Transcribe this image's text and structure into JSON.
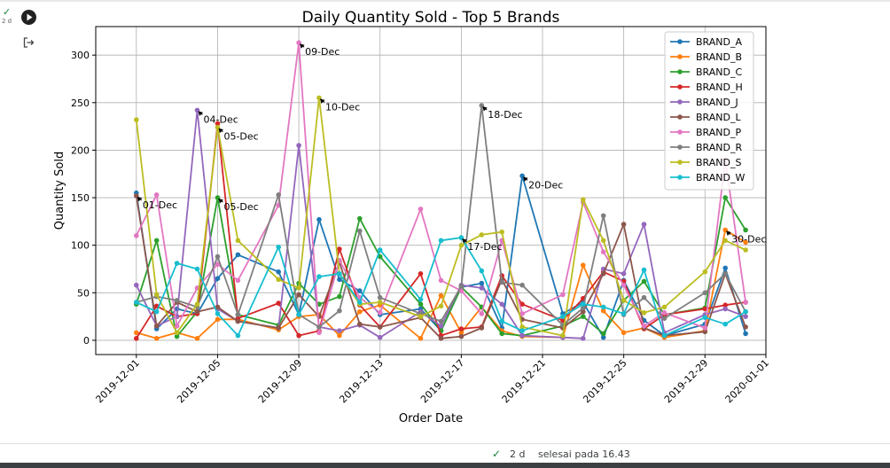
{
  "cell": {
    "exec_status_icon": "check-icon",
    "exec_status_check": "✓",
    "exec_time_short": "2 d",
    "run_icon": "play-icon",
    "output_icon": "output-redirect-icon"
  },
  "status_bar": {
    "check": "✓",
    "duration": "2 d",
    "completed_text": "selesai pada 16.43"
  },
  "chart_data": {
    "type": "line",
    "title": "Daily Quantity Sold - Top 5 Brands",
    "xlabel": "Order Date",
    "ylabel": "Quantity Sold",
    "x_range": [
      "2019-11-29",
      "2020-01-01"
    ],
    "ylim": [
      -15,
      330
    ],
    "xticks": [
      "2019-12-01",
      "2019-12-05",
      "2019-12-09",
      "2019-12-13",
      "2019-12-17",
      "2019-12-21",
      "2019-12-25",
      "2019-12-29",
      "2020-01-01"
    ],
    "yticks": [
      0,
      50,
      100,
      150,
      200,
      250,
      300
    ],
    "grid": true,
    "legend_position": "top-right",
    "dates": [
      "2019-12-01",
      "2019-12-02",
      "2019-12-03",
      "2019-12-04",
      "2019-12-05",
      "2019-12-06",
      "2019-12-08",
      "2019-12-09",
      "2019-12-10",
      "2019-12-11",
      "2019-12-12",
      "2019-12-13",
      "2019-12-15",
      "2019-12-16",
      "2019-12-17",
      "2019-12-18",
      "2019-12-19",
      "2019-12-20",
      "2019-12-22",
      "2019-12-23",
      "2019-12-24",
      "2019-12-25",
      "2019-12-26",
      "2019-12-27",
      "2019-12-29",
      "2019-12-30",
      "2019-12-31"
    ],
    "series": [
      {
        "name": "BRAND_A",
        "color": "#1f77b4",
        "values": [
          155,
          12,
          33,
          28,
          65,
          90,
          72,
          27,
          127,
          64,
          52,
          27,
          33,
          10,
          56,
          60,
          13,
          173,
          28,
          40,
          3,
          63,
          21,
          5,
          17,
          76,
          7
        ]
      },
      {
        "name": "BRAND_B",
        "color": "#ff7f0e",
        "values": [
          8,
          2,
          8,
          2,
          22,
          22,
          11,
          25,
          27,
          5,
          30,
          37,
          2,
          47,
          8,
          35,
          10,
          4,
          3,
          79,
          31,
          8,
          13,
          3,
          10,
          116,
          103
        ]
      },
      {
        "name": "BRAND_C",
        "color": "#2ca02c",
        "values": [
          38,
          105,
          4,
          30,
          150,
          27,
          16,
          60,
          38,
          46,
          128,
          88,
          38,
          10,
          56,
          35,
          7,
          5,
          15,
          25,
          7,
          42,
          62,
          27,
          34,
          150,
          116
        ]
      },
      {
        "name": "BRAND_H",
        "color": "#d62728",
        "values": [
          2,
          36,
          25,
          28,
          228,
          23,
          39,
          5,
          10,
          96,
          37,
          14,
          70,
          5,
          12,
          14,
          68,
          38,
          21,
          44,
          72,
          62,
          12,
          27,
          33,
          37,
          40
        ]
      },
      {
        "name": "BRAND_J",
        "color": "#9467bd",
        "values": [
          58,
          15,
          25,
          242,
          33,
          20,
          13,
          205,
          14,
          10,
          16,
          3,
          30,
          15,
          58,
          55,
          38,
          5,
          3,
          2,
          75,
          70,
          122,
          8,
          27,
          33,
          25
        ]
      },
      {
        "name": "BRAND_L",
        "color": "#8c564b",
        "values": [
          152,
          15,
          40,
          30,
          35,
          20,
          13,
          48,
          25,
          82,
          17,
          14,
          24,
          2,
          4,
          13,
          64,
          22,
          13,
          30,
          70,
          122,
          13,
          5,
          9,
          70,
          14
        ]
      },
      {
        "name": "BRAND_P",
        "color": "#e377c2",
        "values": [
          110,
          153,
          15,
          55,
          80,
          63,
          142,
          313,
          8,
          84,
          45,
          29,
          138,
          63,
          52,
          28,
          105,
          28,
          48,
          145,
          93,
          58,
          15,
          29,
          13,
          190,
          40
        ]
      },
      {
        "name": "BRAND_R",
        "color": "#7f7f7f",
        "values": [
          40,
          46,
          42,
          35,
          88,
          27,
          153,
          27,
          14,
          31,
          115,
          45,
          28,
          20,
          57,
          247,
          61,
          58,
          16,
          34,
          131,
          27,
          45,
          23,
          50,
          70,
          30
        ]
      },
      {
        "name": "BRAND_S",
        "color": "#bcbd22",
        "values": [
          232,
          48,
          8,
          38,
          224,
          105,
          64,
          55,
          255,
          70,
          38,
          40,
          25,
          36,
          100,
          111,
          114,
          14,
          5,
          148,
          105,
          42,
          29,
          35,
          72,
          105,
          95
        ]
      },
      {
        "name": "BRAND_W",
        "color": "#17becf",
        "values": [
          40,
          30,
          81,
          75,
          28,
          5,
          98,
          27,
          67,
          70,
          40,
          95,
          43,
          105,
          108,
          73,
          20,
          10,
          25,
          38,
          35,
          28,
          74,
          5,
          24,
          17,
          30
        ]
      }
    ],
    "annotations": [
      {
        "text": "01-Dec",
        "date": "2019-12-01",
        "value": 152
      },
      {
        "text": "04-Dec",
        "date": "2019-12-04",
        "value": 242
      },
      {
        "text": "05-Dec",
        "date": "2019-12-05",
        "value": 224
      },
      {
        "text": "05-Dec",
        "date": "2019-12-05",
        "value": 150
      },
      {
        "text": "09-Dec",
        "date": "2019-12-09",
        "value": 313
      },
      {
        "text": "10-Dec",
        "date": "2019-12-10",
        "value": 255
      },
      {
        "text": "17-Dec",
        "date": "2019-12-17",
        "value": 108
      },
      {
        "text": "18-Dec",
        "date": "2019-12-18",
        "value": 247
      },
      {
        "text": "20-Dec",
        "date": "2019-12-20",
        "value": 173
      },
      {
        "text": "30-Dec",
        "date": "2019-12-30",
        "value": 116
      }
    ]
  }
}
